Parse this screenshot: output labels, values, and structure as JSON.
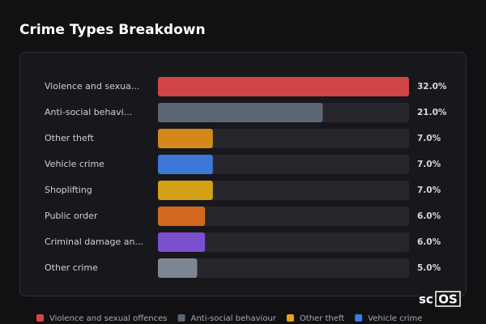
{
  "chart_data": {
    "type": "bar",
    "orientation": "horizontal",
    "title": "Crime Types Breakdown",
    "categories": [
      "Violence and sexua...",
      "Anti-social behavi...",
      "Other theft",
      "Vehicle crime",
      "Shoplifting",
      "Public order",
      "Criminal damage an...",
      "Other crime"
    ],
    "values": [
      32.0,
      21.0,
      7.0,
      7.0,
      7.0,
      6.0,
      6.0,
      5.0
    ],
    "value_labels": [
      "32.0%",
      "21.0%",
      "7.0%",
      "7.0%",
      "7.0%",
      "6.0%",
      "6.0%",
      "5.0%"
    ],
    "colors": [
      "#d04545",
      "#5b6677",
      "#d4881a",
      "#3b78d8",
      "#d4a017",
      "#d2691e",
      "#7b50d0",
      "#7d8695"
    ],
    "legend": [
      {
        "name": "Violence and sexual offences",
        "color": "#d94545"
      },
      {
        "name": "Anti-social behaviour",
        "color": "#5b6677"
      },
      {
        "name": "Other theft",
        "color": "#e8a020"
      },
      {
        "name": "Vehicle crime",
        "color": "#3b7de0"
      }
    ]
  },
  "logo": {
    "prefix": "sc",
    "boxed": "OS"
  }
}
